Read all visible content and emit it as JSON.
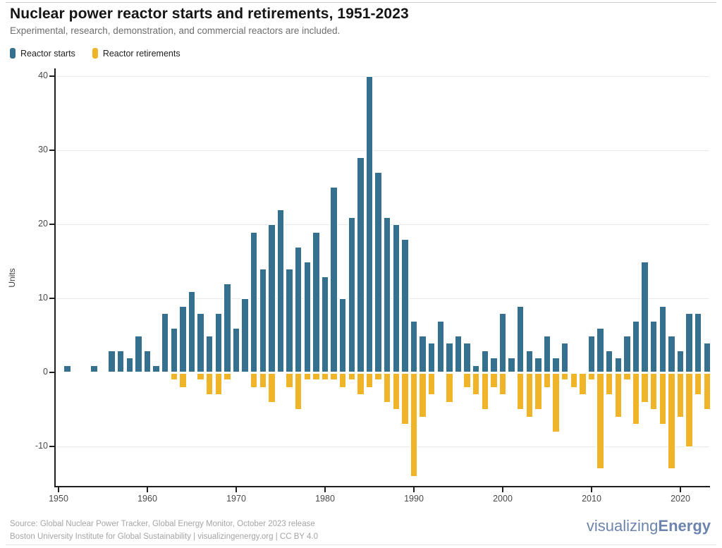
{
  "header": {
    "title": "Nuclear power reactor starts and retirements, 1951-2023",
    "subtitle": "Experimental, research, demonstration, and commercial reactors are included."
  },
  "legend": [
    {
      "label": "Reactor starts",
      "color": "#35708e"
    },
    {
      "label": "Reactor retirements",
      "color": "#f0b429"
    }
  ],
  "chart_data": {
    "type": "bar",
    "title": "Nuclear power reactor starts and retirements, 1951-2023",
    "ylabel": "Units",
    "xlabel": "",
    "grid": "horizontal",
    "legend_position": "top-left",
    "ylim": [
      -15.5,
      41
    ],
    "xlim": [
      1949.6,
      2023.4
    ],
    "y_ticks": [
      40,
      30,
      20,
      10,
      0,
      -10
    ],
    "y_gridlines": [
      40,
      30,
      20,
      10,
      -10
    ],
    "x_ticks": [
      1950,
      1960,
      1970,
      1980,
      1990,
      2000,
      2010,
      2020
    ],
    "x": [
      1951,
      1952,
      1953,
      1954,
      1955,
      1956,
      1957,
      1958,
      1959,
      1960,
      1961,
      1962,
      1963,
      1964,
      1965,
      1966,
      1967,
      1968,
      1969,
      1970,
      1971,
      1972,
      1973,
      1974,
      1975,
      1976,
      1977,
      1978,
      1979,
      1980,
      1981,
      1982,
      1983,
      1984,
      1985,
      1986,
      1987,
      1988,
      1989,
      1990,
      1991,
      1992,
      1993,
      1994,
      1995,
      1996,
      1997,
      1998,
      1999,
      2000,
      2001,
      2002,
      2003,
      2004,
      2005,
      2006,
      2007,
      2008,
      2009,
      2010,
      2011,
      2012,
      2013,
      2014,
      2015,
      2016,
      2017,
      2018,
      2019,
      2020,
      2021,
      2022,
      2023
    ],
    "series": [
      {
        "name": "Reactor starts",
        "color": "#35708e",
        "values": [
          1,
          0,
          0,
          1,
          0,
          3,
          3,
          2,
          5,
          3,
          1,
          8,
          6,
          9,
          11,
          8,
          5,
          8,
          12,
          6,
          10,
          19,
          14,
          20,
          22,
          14,
          17,
          15,
          19,
          13,
          25,
          10,
          21,
          29,
          40,
          27,
          21,
          20,
          18,
          7,
          5,
          4,
          7,
          4,
          5,
          4,
          1,
          3,
          2,
          8,
          2,
          9,
          3,
          2,
          5,
          2,
          4,
          0,
          0,
          5,
          6,
          3,
          2,
          5,
          7,
          15,
          7,
          9,
          5,
          3,
          8,
          8,
          4
        ]
      },
      {
        "name": "Reactor retirements",
        "color": "#f0b429",
        "values": [
          0,
          0,
          0,
          0,
          0,
          0,
          0,
          0,
          0,
          0,
          0,
          0,
          -1,
          -2,
          0,
          -1,
          -3,
          -3,
          -1,
          0,
          0,
          -2,
          -2,
          -4,
          0,
          -2,
          -5,
          -1,
          -1,
          -1,
          -1,
          -2,
          -1,
          -3,
          -2,
          -1,
          -4,
          -5,
          -7,
          -14,
          -6,
          -3,
          0,
          -4,
          0,
          -2,
          -3,
          -5,
          -2,
          -3,
          0,
          -5,
          -6,
          -5,
          -2,
          -8,
          -1,
          -2,
          -3,
          -1,
          -13,
          -3,
          -6,
          -1,
          -7,
          -4,
          -5,
          -7,
          -13,
          -6,
          -10,
          -3,
          -5
        ]
      }
    ]
  },
  "footer": {
    "line1": "Source: Global Nuclear Power Tracker, Global Energy Monitor, October 2023 release",
    "line2": "Boston University Institute for Global Sustainability | visualizingenergy.org | CC BY 4.0"
  },
  "logo": {
    "regular": "visualizing",
    "bold": "Energy"
  }
}
